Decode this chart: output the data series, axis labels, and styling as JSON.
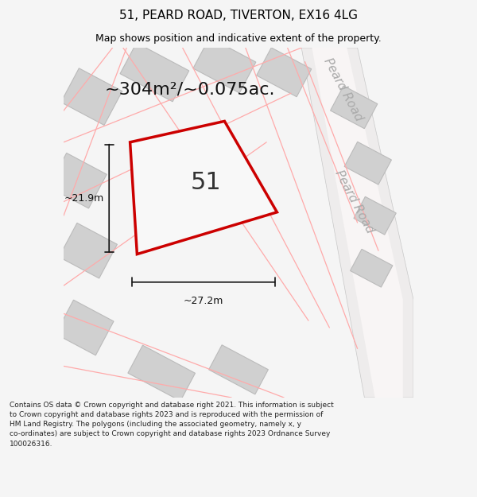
{
  "title": "51, PEARD ROAD, TIVERTON, EX16 4LG",
  "subtitle": "Map shows position and indicative extent of the property.",
  "area_text": "~304m²/~0.075ac.",
  "label_51": "51",
  "dim_vertical": "~21.9m",
  "dim_horizontal": "~27.2m",
  "road_label_top": "Peard Road",
  "road_label_mid": "Peard Road",
  "footer_lines": [
    "Contains OS data © Crown copyright and database right 2021. This information is subject",
    "to Crown copyright and database rights 2023 and is reproduced with the permission of",
    "HM Land Registry. The polygons (including the associated geometry, namely x, y",
    "co-ordinates) are subject to Crown copyright and database rights 2023 Ordnance Survey",
    "100026316."
  ],
  "bg_color": "#f5f5f5",
  "map_bg": "#ffffff",
  "plot_edge": "#cc0000",
  "dim_line_color": "#111111",
  "title_fontsize": 11,
  "subtitle_fontsize": 9,
  "area_fontsize": 16,
  "label_51_fontsize": 22,
  "dim_fontsize": 9,
  "road_label_fontsize": 11,
  "footer_fontsize": 6.5,
  "road_band_color": "#eeecec",
  "building_fill": "#d0d0d0",
  "building_edge": "#bbbbbb",
  "pink_line_color": "#ffaaaa"
}
